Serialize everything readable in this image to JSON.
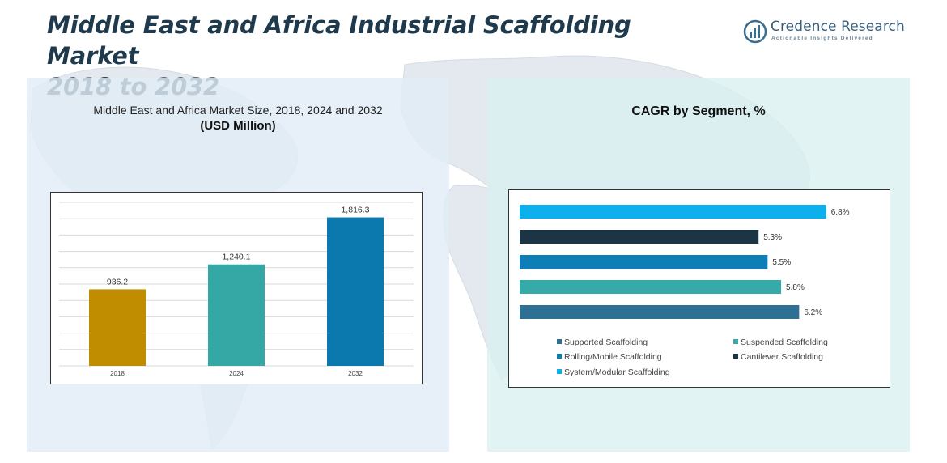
{
  "header": {
    "title_line1": "Middle East and Africa Industrial Scaffolding Market",
    "title_line2": "2018 to 2032"
  },
  "logo": {
    "brand": "Credence Research",
    "tagline": "Actionable Insights Delivered",
    "icon": "bar-chart-logo-icon"
  },
  "colors": {
    "title": "#1f3a4d",
    "bar_2018": "#c08d00",
    "bar_2024": "#35a7a5",
    "bar_2032": "#0b78ae",
    "supported": "#2e6f94",
    "suspended": "#36aaa9",
    "rolling": "#0e7fb6",
    "cantilever": "#1b3545",
    "system": "#0bb0ec"
  },
  "left_panel": {
    "title": "Middle East and Africa Market Size, 2018, 2024 and 2032",
    "subtitle": "(USD Million)"
  },
  "right_panel": {
    "title": "CAGR by Segment, %"
  },
  "chart_data": [
    {
      "type": "bar",
      "title": "Middle East and Africa Market Size, 2018, 2024 and 2032",
      "ylabel": "USD Million",
      "categories": [
        "2018",
        "2024",
        "2032"
      ],
      "values": [
        936.2,
        1240.1,
        1816.3
      ],
      "value_labels": [
        "936.2",
        "1,240.1",
        "1,816.3"
      ],
      "ylim": [
        0,
        2000
      ],
      "grid": true,
      "colors": [
        "#c08d00",
        "#35a7a5",
        "#0b78ae"
      ]
    },
    {
      "type": "bar",
      "orientation": "horizontal",
      "title": "CAGR by Segment, %",
      "series": [
        {
          "name": "System/Modular Scaffolding",
          "value": 6.8,
          "label": "6.8%",
          "color": "#0bb0ec"
        },
        {
          "name": "Cantilever Scaffolding",
          "value": 5.3,
          "label": "5.3%",
          "color": "#1b3545"
        },
        {
          "name": "Rolling/Mobile Scaffolding",
          "value": 5.5,
          "label": "5.5%",
          "color": "#0e7fb6"
        },
        {
          "name": "Suspended Scaffolding",
          "value": 5.8,
          "label": "5.8%",
          "color": "#36aaa9"
        },
        {
          "name": "Supported Scaffolding",
          "value": 6.2,
          "label": "6.2%",
          "color": "#2e6f94"
        }
      ],
      "xlim": [
        0,
        7.5
      ],
      "legend": [
        {
          "label": "Supported Scaffolding",
          "color": "#2e6f94"
        },
        {
          "label": "Suspended Scaffolding",
          "color": "#36aaa9"
        },
        {
          "label": "Rolling/Mobile Scaffolding",
          "color": "#0e7fb6"
        },
        {
          "label": "Cantilever Scaffolding",
          "color": "#1b3545"
        },
        {
          "label": "System/Modular Scaffolding",
          "color": "#0bb0ec"
        }
      ],
      "legend_position": "bottom"
    }
  ]
}
